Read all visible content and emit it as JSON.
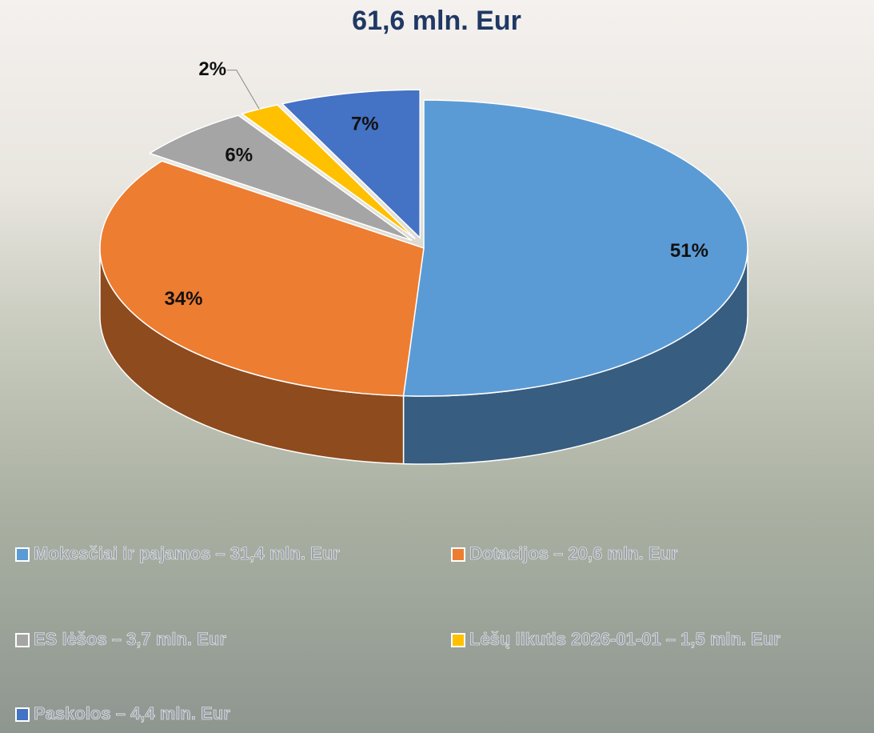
{
  "chart_data": {
    "type": "pie",
    "title": "61,6 mln. Eur",
    "categories": [
      "Mokesčiai ir pajamos  –  31,4 mln. Eur",
      "Dotacijos  – 20,6 mln. Eur",
      "ES lėšos – 3,7 mln. Eur",
      "Lėšų likutis 2026-01-01  – 1,5 mln. Eur",
      "Paskolos  – 4,4 mln. Eur"
    ],
    "values": [
      51,
      34,
      6,
      2,
      7
    ],
    "value_labels": [
      "51%",
      "34%",
      "6%",
      "2%",
      "7%"
    ],
    "colors": [
      "#5b9bd5",
      "#ed7d31",
      "#a5a5a5",
      "#ffc000",
      "#4472c4"
    ],
    "legend": "bottom"
  }
}
